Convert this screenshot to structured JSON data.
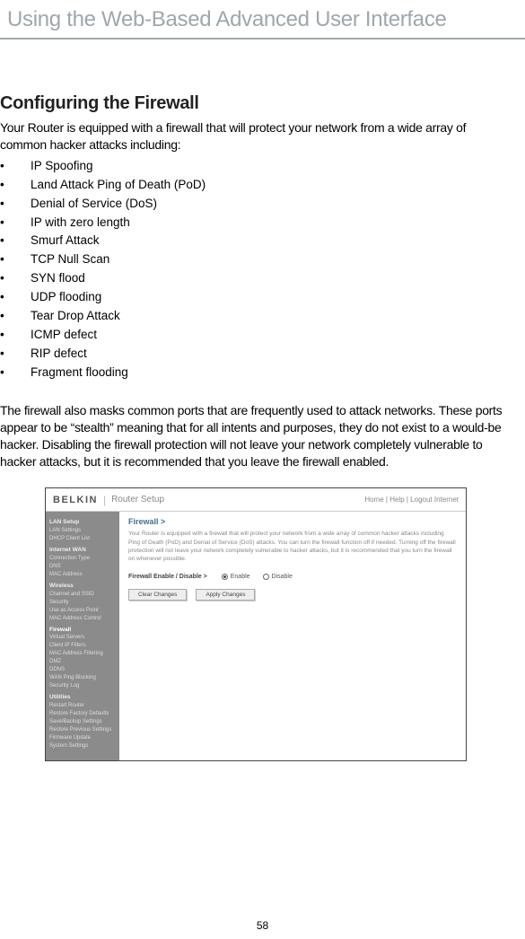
{
  "page": {
    "top_title": "Using the Web-Based Advanced User Interface",
    "section_heading": "Configuring the Firewall",
    "intro": "Your Router is equipped with a firewall that will protect your network from a wide array of common hacker attacks including:",
    "bullets": [
      "IP Spoofing",
      "Land Attack Ping of Death (PoD)",
      "Denial of Service (DoS)",
      "IP with zero length",
      "Smurf Attack",
      "TCP Null Scan",
      "SYN flood",
      "UDP flooding",
      "Tear Drop Attack",
      "ICMP defect",
      "RIP defect",
      "Fragment flooding"
    ],
    "body": "The firewall also masks common ports that are frequently used to attack networks. These ports appear to be “stealth” meaning that for all intents and purposes, they do not exist to a would-be hacker. Disabling the firewall protection will not leave your network completely vulnerable to hacker attacks, but it is recommended that you leave the firewall enabled.",
    "page_number": "58"
  },
  "router_ui": {
    "brand": "BELKIN",
    "topbar_label": "Router Setup",
    "topbar_right": "Home | Help | Logout    Internet",
    "panel_title": "Firewall >",
    "panel_desc": "Your Router is equipped with a firewall that will protect your network from a wide array of common hacker attacks including Ping of Death (PoD) and Denial of Service (DoS) attacks. You can turn the firewall function off if needed. Turning off the firewall protection will not leave your network completely vulnerable to hacker attacks, but it is recommended that you turn the firewall on whenever possible.",
    "firewall_label": "Firewall Enable / Disable >",
    "radio_enable": "Enable",
    "radio_disable": "Disable",
    "btn_clear": "Clear Changes",
    "btn_apply": "Apply Changes",
    "sidebar": {
      "items": [
        {
          "label": "LAN Setup",
          "header": true
        },
        {
          "label": "LAN Settings"
        },
        {
          "label": "DHCP Client List"
        },
        {
          "label": "Internet WAN",
          "header": true
        },
        {
          "label": "Connection Type"
        },
        {
          "label": "DNS"
        },
        {
          "label": "MAC Address"
        },
        {
          "label": "Wireless",
          "header": true
        },
        {
          "label": "Channel and SSID"
        },
        {
          "label": "Security"
        },
        {
          "label": "Use as Access Point"
        },
        {
          "label": "MAC Address Control"
        },
        {
          "label": "Firewall",
          "header": true,
          "active": true
        },
        {
          "label": "Virtual Servers"
        },
        {
          "label": "Client IP Filters"
        },
        {
          "label": "MAC Address Filtering"
        },
        {
          "label": "DMZ"
        },
        {
          "label": "DDNS"
        },
        {
          "label": "WAN Ping Blocking"
        },
        {
          "label": "Security Log"
        },
        {
          "label": "Utilities",
          "header": true
        },
        {
          "label": "Restart Router"
        },
        {
          "label": "Restore Factory Defaults"
        },
        {
          "label": "Save/Backup Settings"
        },
        {
          "label": "Restore Previous Settings"
        },
        {
          "label": "Firmware Update"
        },
        {
          "label": "System Settings"
        }
      ]
    }
  },
  "colors": {
    "title_gray": "#9ea7ad",
    "sidebar_bg": "#8b8b8b",
    "panel_title": "#407090"
  }
}
